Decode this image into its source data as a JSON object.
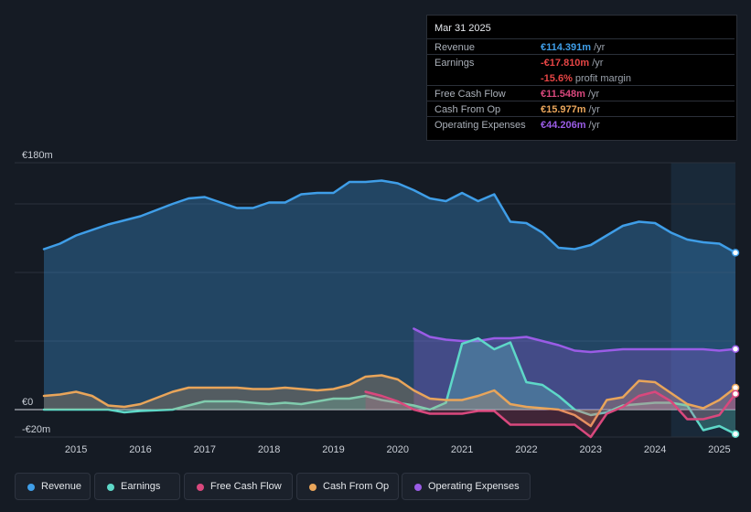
{
  "tooltip": {
    "date": "Mar 31 2025",
    "rows": [
      {
        "label": "Revenue",
        "value": "€114.391m",
        "unit": "/yr",
        "color": "#3f9ee8"
      },
      {
        "label": "Earnings",
        "value": "-€17.810m",
        "unit": "/yr",
        "color": "#e64545"
      },
      {
        "label": "",
        "value": "-15.6%",
        "unit": "profit margin",
        "color": "#e64545"
      },
      {
        "label": "Free Cash Flow",
        "value": "€11.548m",
        "unit": "/yr",
        "color": "#d9487d"
      },
      {
        "label": "Cash From Op",
        "value": "€15.977m",
        "unit": "/yr",
        "color": "#e9a55a"
      },
      {
        "label": "Operating Expenses",
        "value": "€44.206m",
        "unit": "/yr",
        "color": "#9a5ce6"
      }
    ]
  },
  "legend": [
    {
      "label": "Revenue",
      "color": "#3f9ee8"
    },
    {
      "label": "Earnings",
      "color": "#5ed8c8"
    },
    {
      "label": "Free Cash Flow",
      "color": "#d9487d"
    },
    {
      "label": "Cash From Op",
      "color": "#e9a55a"
    },
    {
      "label": "Operating Expenses",
      "color": "#9a5ce6"
    }
  ],
  "chart_data": {
    "type": "area",
    "title": "",
    "xlabel": "",
    "ylabel": "",
    "ylim": [
      -20,
      180
    ],
    "xlim": [
      2014.5,
      2025.25
    ],
    "y_tick_labels": [
      {
        "value": 180,
        "label": "€180m"
      },
      {
        "value": 0,
        "label": "€0"
      },
      {
        "value": -20,
        "label": "-€20m"
      }
    ],
    "x_ticks": [
      {
        "value": 2015,
        "label": "2015"
      },
      {
        "value": 2016,
        "label": "2016"
      },
      {
        "value": 2017,
        "label": "2017"
      },
      {
        "value": 2018,
        "label": "2018"
      },
      {
        "value": 2019,
        "label": "2019"
      },
      {
        "value": 2020,
        "label": "2020"
      },
      {
        "value": 2021,
        "label": "2021"
      },
      {
        "value": 2022,
        "label": "2022"
      },
      {
        "value": 2023,
        "label": "2023"
      },
      {
        "value": 2024,
        "label": "2024"
      },
      {
        "value": 2025,
        "label": "2025"
      }
    ],
    "forecast_start": 2024.25,
    "series": [
      {
        "name": "Revenue",
        "color": "#3f9ee8",
        "fill": true,
        "points": [
          [
            2014.5,
            117
          ],
          [
            2014.75,
            121
          ],
          [
            2015,
            127
          ],
          [
            2015.5,
            135
          ],
          [
            2016,
            141
          ],
          [
            2016.5,
            150
          ],
          [
            2016.75,
            154
          ],
          [
            2017,
            155
          ],
          [
            2017.25,
            151
          ],
          [
            2017.5,
            147
          ],
          [
            2017.75,
            147
          ],
          [
            2018,
            151
          ],
          [
            2018.25,
            151
          ],
          [
            2018.5,
            157
          ],
          [
            2018.75,
            158
          ],
          [
            2019,
            158
          ],
          [
            2019.25,
            166
          ],
          [
            2019.5,
            166
          ],
          [
            2019.75,
            167
          ],
          [
            2020,
            165
          ],
          [
            2020.25,
            160
          ],
          [
            2020.5,
            154
          ],
          [
            2020.75,
            152
          ],
          [
            2021,
            158
          ],
          [
            2021.25,
            152
          ],
          [
            2021.5,
            157
          ],
          [
            2021.75,
            137
          ],
          [
            2022,
            136
          ],
          [
            2022.25,
            129
          ],
          [
            2022.5,
            118
          ],
          [
            2022.75,
            117
          ],
          [
            2023,
            120
          ],
          [
            2023.25,
            127
          ],
          [
            2023.5,
            134
          ],
          [
            2023.75,
            137
          ],
          [
            2024,
            136
          ],
          [
            2024.25,
            129
          ],
          [
            2024.5,
            124
          ],
          [
            2024.75,
            122
          ],
          [
            2025,
            121
          ],
          [
            2025.25,
            114.4
          ]
        ]
      },
      {
        "name": "Operating Expenses",
        "color": "#9a5ce6",
        "fill": true,
        "points": [
          [
            2020.25,
            59
          ],
          [
            2020.5,
            53
          ],
          [
            2020.75,
            51
          ],
          [
            2021,
            50
          ],
          [
            2021.25,
            50
          ],
          [
            2021.5,
            52
          ],
          [
            2021.75,
            52
          ],
          [
            2022,
            53
          ],
          [
            2022.25,
            50
          ],
          [
            2022.5,
            47
          ],
          [
            2022.75,
            43
          ],
          [
            2023,
            42
          ],
          [
            2023.25,
            43
          ],
          [
            2023.5,
            44
          ],
          [
            2023.75,
            44
          ],
          [
            2024,
            44
          ],
          [
            2024.25,
            44
          ],
          [
            2024.5,
            44
          ],
          [
            2024.75,
            44
          ],
          [
            2025,
            43
          ],
          [
            2025.25,
            44.2
          ]
        ]
      },
      {
        "name": "Earnings",
        "color": "#5ed8c8",
        "fill": true,
        "points": [
          [
            2014.5,
            0
          ],
          [
            2015,
            0
          ],
          [
            2015.5,
            0
          ],
          [
            2015.75,
            -2
          ],
          [
            2016,
            -1
          ],
          [
            2016.5,
            0
          ],
          [
            2016.75,
            3
          ],
          [
            2017,
            6
          ],
          [
            2017.5,
            6
          ],
          [
            2017.75,
            5
          ],
          [
            2018,
            4
          ],
          [
            2018.25,
            5
          ],
          [
            2018.5,
            4
          ],
          [
            2018.75,
            6
          ],
          [
            2019,
            8
          ],
          [
            2019.25,
            8
          ],
          [
            2019.5,
            10
          ],
          [
            2019.75,
            7
          ],
          [
            2020,
            5
          ],
          [
            2020.25,
            3
          ],
          [
            2020.5,
            0
          ],
          [
            2020.75,
            5
          ],
          [
            2021,
            48
          ],
          [
            2021.25,
            52
          ],
          [
            2021.5,
            44
          ],
          [
            2021.75,
            49
          ],
          [
            2022,
            20
          ],
          [
            2022.25,
            18
          ],
          [
            2022.5,
            10
          ],
          [
            2022.75,
            0
          ],
          [
            2023,
            -4
          ],
          [
            2023.25,
            -2
          ],
          [
            2023.5,
            3
          ],
          [
            2023.75,
            4
          ],
          [
            2024,
            5
          ],
          [
            2024.25,
            5
          ],
          [
            2024.5,
            3
          ],
          [
            2024.75,
            -15
          ],
          [
            2025,
            -12
          ],
          [
            2025.25,
            -17.8
          ]
        ]
      },
      {
        "name": "Cash From Op",
        "color": "#e9a55a",
        "fill": true,
        "points": [
          [
            2014.5,
            10
          ],
          [
            2014.75,
            11
          ],
          [
            2015,
            13
          ],
          [
            2015.25,
            10
          ],
          [
            2015.5,
            3
          ],
          [
            2015.75,
            2
          ],
          [
            2016,
            4
          ],
          [
            2016.5,
            13
          ],
          [
            2016.75,
            16
          ],
          [
            2017,
            16
          ],
          [
            2017.5,
            16
          ],
          [
            2017.75,
            15
          ],
          [
            2018,
            15
          ],
          [
            2018.25,
            16
          ],
          [
            2018.5,
            15
          ],
          [
            2018.75,
            14
          ],
          [
            2019,
            15
          ],
          [
            2019.25,
            18
          ],
          [
            2019.5,
            24
          ],
          [
            2019.75,
            25
          ],
          [
            2020,
            22
          ],
          [
            2020.25,
            14
          ],
          [
            2020.5,
            8
          ],
          [
            2020.75,
            7
          ],
          [
            2021,
            7
          ],
          [
            2021.25,
            10
          ],
          [
            2021.5,
            14
          ],
          [
            2021.75,
            4
          ],
          [
            2022,
            2
          ],
          [
            2022.5,
            0
          ],
          [
            2022.75,
            -4
          ],
          [
            2023,
            -12
          ],
          [
            2023.25,
            7
          ],
          [
            2023.5,
            9
          ],
          [
            2023.75,
            21
          ],
          [
            2024,
            20
          ],
          [
            2024.25,
            12
          ],
          [
            2024.5,
            4
          ],
          [
            2024.75,
            1
          ],
          [
            2025,
            7
          ],
          [
            2025.25,
            16
          ]
        ]
      },
      {
        "name": "Free Cash Flow",
        "color": "#d9487d",
        "fill": true,
        "points": [
          [
            2019.5,
            13
          ],
          [
            2019.75,
            10
          ],
          [
            2020,
            6
          ],
          [
            2020.25,
            0
          ],
          [
            2020.5,
            -3
          ],
          [
            2020.75,
            -3
          ],
          [
            2021,
            -3
          ],
          [
            2021.25,
            -1
          ],
          [
            2021.5,
            -1
          ],
          [
            2021.75,
            -11
          ],
          [
            2022,
            -11
          ],
          [
            2022.5,
            -11
          ],
          [
            2022.75,
            -11
          ],
          [
            2023,
            -20
          ],
          [
            2023.25,
            -3
          ],
          [
            2023.5,
            2
          ],
          [
            2023.75,
            10
          ],
          [
            2024,
            13
          ],
          [
            2024.25,
            6
          ],
          [
            2024.5,
            -7
          ],
          [
            2024.75,
            -7
          ],
          [
            2025,
            -4
          ],
          [
            2025.25,
            11.5
          ]
        ]
      }
    ]
  }
}
